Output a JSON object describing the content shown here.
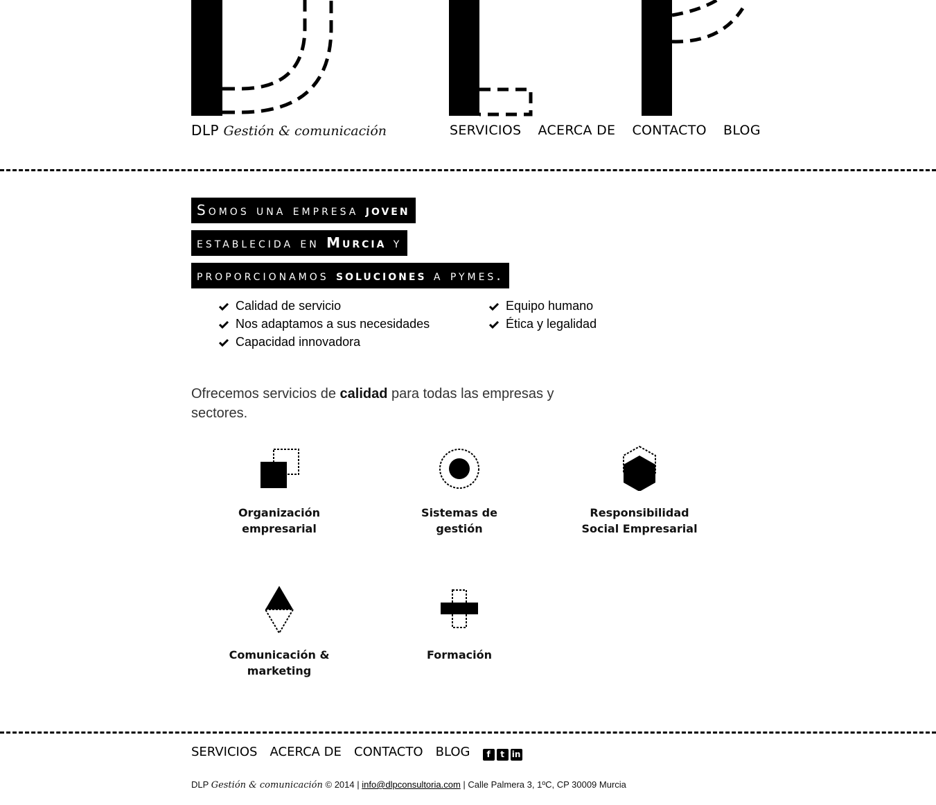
{
  "header": {
    "brand_name": "DLP",
    "brand_tagline": "Gestión & comunicación",
    "nav": [
      "SERVICIOS",
      "ACERCA DE",
      "CONTACTO",
      "BLOG"
    ]
  },
  "hero": {
    "line1": {
      "pre": "Somos una empresa ",
      "bold": "joven",
      "post": ""
    },
    "line2": {
      "pre": "establecida en ",
      "bold": "Murcia",
      "post": " y"
    },
    "line3": {
      "pre": "proporcionamos ",
      "bold": "soluciones",
      "post": " a pymes."
    }
  },
  "features": {
    "left": [
      "Calidad de servicio",
      "Nos adaptamos a sus necesidades",
      "Capacidad innovadora"
    ],
    "right": [
      "Equipo humano",
      "Ética y legalidad"
    ]
  },
  "intro": {
    "pre": "Ofrecemos servicios de ",
    "bold": "calidad",
    "post": " para todas las empresas y sectores."
  },
  "services": [
    {
      "label": "Organización empresarial",
      "icon": "squares-icon"
    },
    {
      "label": "Sistemas de gestión",
      "icon": "circle-target-icon"
    },
    {
      "label": "Responsibilidad Social Empresarial",
      "icon": "hexagon-icon"
    },
    {
      "label": "Comunicación & marketing",
      "icon": "triangles-icon"
    },
    {
      "label": "Formación",
      "icon": "cross-bar-icon"
    }
  ],
  "footer": {
    "nav": [
      "SERVICIOS",
      "ACERCA DE",
      "CONTACTO",
      "BLOG"
    ],
    "social": [
      "facebook-icon",
      "twitter-icon",
      "linkedin-icon"
    ],
    "brand_name": "DLP",
    "brand_tagline": "Gestión & comunicación",
    "copyright": "© 2014 |",
    "email": "info@dlpconsultoria.com",
    "address": "| Calle Palmera 3, 1ºC, CP 30009 Murcia"
  }
}
